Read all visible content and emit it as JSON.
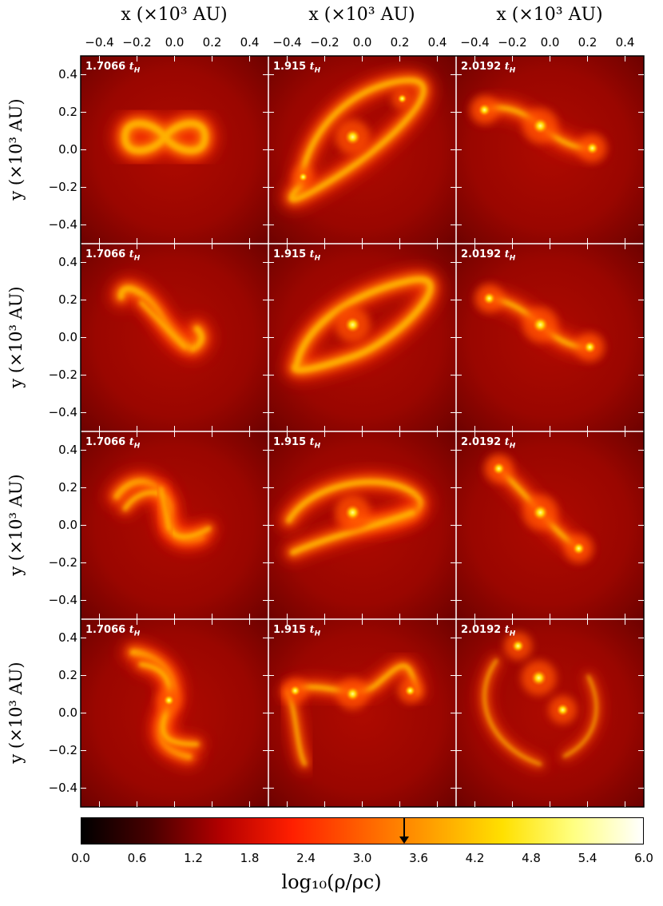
{
  "figure": {
    "x_axis_label": "x (×10³ AU)",
    "y_axis_label": "y (×10³ AU)",
    "x_ticks": [
      "−0.4",
      "−0.2",
      "0.0",
      "0.2",
      "0.4"
    ],
    "y_ticks": [
      "0.4",
      "0.2",
      "0.0",
      "−0.2",
      "−0.4"
    ],
    "column_times": [
      "1.7066",
      "1.915",
      "2.0192"
    ],
    "time_unit_symbol": "t",
    "time_unit_subscript": "H",
    "colorbar": {
      "ticks": [
        "0.0",
        "0.6",
        "1.2",
        "1.8",
        "2.4",
        "3.0",
        "3.6",
        "4.2",
        "4.8",
        "5.4",
        "6.0"
      ],
      "range": [
        0.0,
        6.0
      ],
      "marker_value": 3.45,
      "label": "log₁₀(ρ/ρc)",
      "colors": [
        "#000000",
        "#4a0000",
        "#b40000",
        "#ff1f00",
        "#ff6000",
        "#ffa000",
        "#ffe000",
        "#ffff80",
        "#ffffff"
      ]
    }
  }
}
